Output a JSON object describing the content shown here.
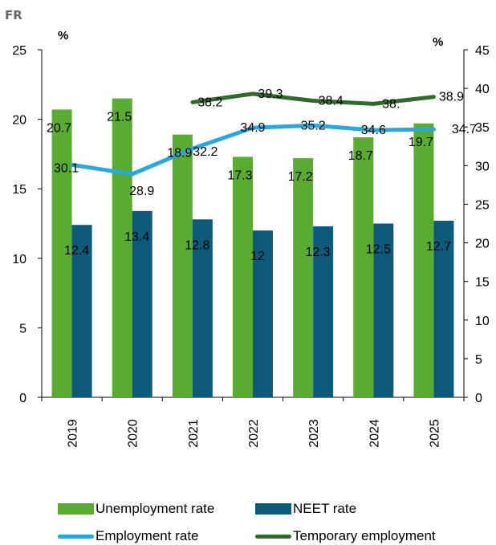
{
  "country": "FR",
  "chart_data": {
    "type": "bar",
    "categories": [
      "2019",
      "2020",
      "2021",
      "2022",
      "2023",
      "2024",
      "2025"
    ],
    "left_axis": {
      "unit": "%",
      "ylim": [
        0,
        25
      ],
      "ticks": [
        0,
        5,
        10,
        15,
        20,
        25
      ]
    },
    "right_axis": {
      "unit": "%",
      "ylim": [
        0,
        45
      ],
      "ticks": [
        0,
        5,
        10,
        15,
        20,
        25,
        30,
        35,
        40,
        45
      ]
    },
    "bar_series": [
      {
        "name": "Unemployment rate",
        "color": "#5aab32",
        "axis": "left",
        "values": [
          20.7,
          21.5,
          18.9,
          17.3,
          17.2,
          18.7,
          19.7
        ],
        "labels": [
          "20.7",
          "21.5",
          "18.9",
          "17.3",
          "17.2",
          "18.7",
          "19.7"
        ]
      },
      {
        "name": "NEET rate",
        "color": "#0e5a7a",
        "axis": "left",
        "values": [
          12.4,
          13.4,
          12.8,
          12,
          12.3,
          12.5,
          12.7
        ],
        "labels": [
          "12.4",
          "13.4",
          "12.8",
          "12",
          "12.3",
          "12.5",
          "12.7"
        ]
      }
    ],
    "line_series": [
      {
        "name": "Employment rate",
        "color": "#29a8df",
        "axis": "right",
        "values": [
          30.1,
          28.9,
          32.2,
          34.9,
          35.2,
          34.6,
          34.7
        ],
        "labels": [
          "30.1",
          "28.9",
          "32.2",
          "34.9",
          "35.2",
          "34.6",
          "34.7"
        ]
      },
      {
        "name": "Temporary employment",
        "color": "#2f6b2a",
        "axis": "right",
        "values": [
          null,
          null,
          38.2,
          39.3,
          38.4,
          38.0,
          38.9
        ],
        "labels": [
          "",
          "",
          "38.2",
          "39.3",
          "38.4",
          "38.",
          "38.9"
        ]
      }
    ],
    "legend_position": "bottom",
    "grid": false
  }
}
